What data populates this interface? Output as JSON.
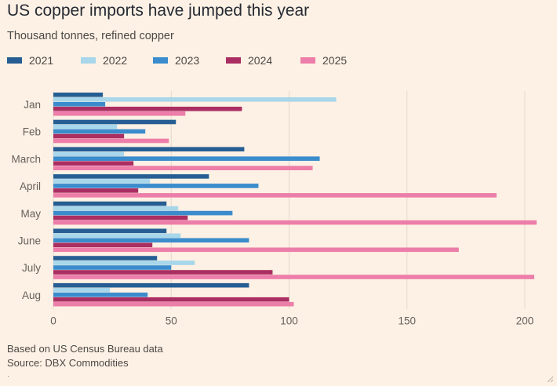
{
  "chart_data": {
    "type": "bar",
    "orientation": "horizontal",
    "title": "US copper imports have jumped this year",
    "subtitle": "Thousand tonnes, refined copper",
    "categories": [
      "Jan",
      "Feb",
      "March",
      "April",
      "May",
      "June",
      "July",
      "Aug"
    ],
    "series": [
      {
        "name": "2021",
        "color": "#265e93",
        "values": [
          21,
          52,
          81,
          66,
          48,
          48,
          44,
          83
        ]
      },
      {
        "name": "2022",
        "color": "#a8d6ea",
        "values": [
          120,
          27,
          30,
          41,
          53,
          54,
          60,
          24
        ]
      },
      {
        "name": "2023",
        "color": "#3a8ccc",
        "values": [
          22,
          39,
          113,
          87,
          76,
          83,
          50,
          40
        ]
      },
      {
        "name": "2024",
        "color": "#aa2e61",
        "values": [
          80,
          30,
          34,
          36,
          57,
          42,
          93,
          100
        ]
      },
      {
        "name": "2025",
        "color": "#ec7ea9",
        "values": [
          56,
          49,
          110,
          188,
          205,
          172,
          204,
          102
        ]
      }
    ],
    "xlabel": "",
    "ylabel": "",
    "xlim": [
      0,
      205
    ],
    "xticks": [
      0,
      50,
      100,
      150,
      200
    ],
    "grid": true,
    "legend_position": "top"
  },
  "footer": {
    "source_note": "Based on US Census Bureau data",
    "source": "Source: DBX Commodities"
  },
  "colors": {
    "background": "#fdf1e5",
    "gridline": "#e3d8cd"
  }
}
